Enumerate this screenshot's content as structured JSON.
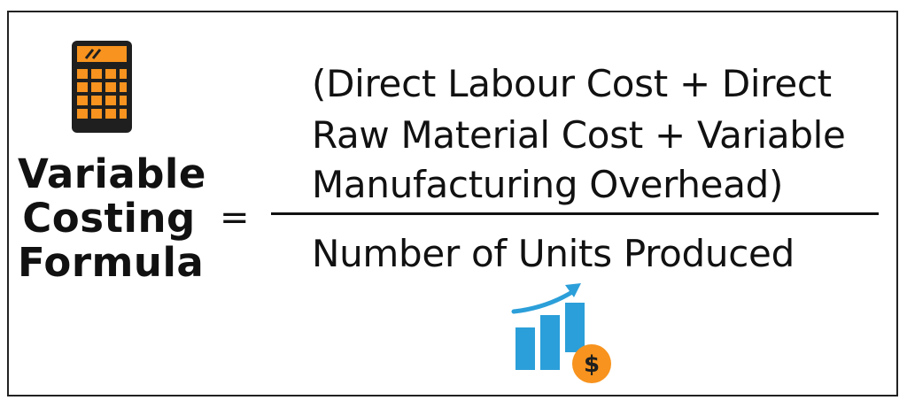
{
  "title": {
    "lines": [
      "Variable",
      "Costing",
      "Formula"
    ]
  },
  "equals_sign": "=",
  "numerator": {
    "lines": [
      "(Direct Labour Cost + Direct",
      "Raw Material Cost + Variable",
      "Manufacturing Overhead)"
    ]
  },
  "denominator": "Number of Units Produced",
  "icons": {
    "calculator": "calculator-icon",
    "growth_chart": "bar-chart-dollar-icon",
    "dollar_symbol": "$"
  },
  "colors": {
    "orange": "#f7931e",
    "blue": "#2b9fd9",
    "dark": "#1f1f1f"
  }
}
